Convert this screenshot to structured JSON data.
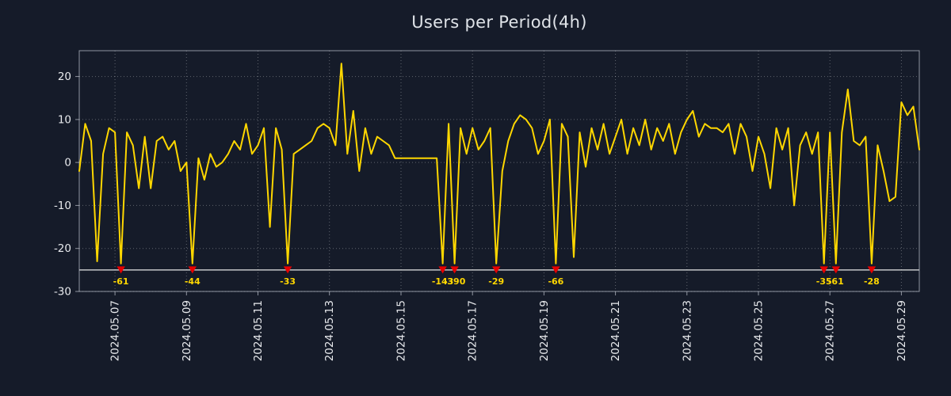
{
  "page": {
    "background": "#151b29"
  },
  "chart_data": {
    "type": "line",
    "title": "Users per Period(4h)",
    "x_start": "2024.05.06 00:00",
    "step_hours": 4,
    "x_axis": {
      "first_tick_index": 6,
      "tick_step_points": 12,
      "tick_labels": [
        "2024.05.07",
        "2024.05.09",
        "2024.05.11",
        "2024.05.13",
        "2024.05.15",
        "2024.05.17",
        "2024.05.19",
        "2024.05.21",
        "2024.05.23",
        "2024.05.25",
        "2024.05.27",
        "2024.05.29"
      ]
    },
    "y_axis": {
      "ticks": [
        -30,
        -20,
        -10,
        0,
        10,
        20
      ],
      "lim": [
        -30,
        26
      ]
    },
    "threshold": {
      "value": -25,
      "clip_display": -23.5
    },
    "values": [
      -2,
      9,
      5,
      -23,
      2,
      8,
      7,
      -61,
      7,
      4,
      -6,
      6,
      -6,
      5,
      6,
      3,
      5,
      -2,
      0,
      -44,
      1,
      -4,
      2,
      -1,
      0,
      2,
      5,
      3,
      9,
      2,
      4,
      8,
      -15,
      8,
      3,
      -33,
      2,
      3,
      4,
      5,
      8,
      9,
      8,
      4,
      23,
      2,
      12,
      -2,
      8,
      2,
      6,
      5,
      4,
      1,
      1,
      1,
      1,
      1,
      1,
      1,
      1,
      -143,
      9,
      -390,
      8,
      2,
      8,
      3,
      5,
      8,
      -29,
      -2,
      5,
      9,
      11,
      10,
      8,
      2,
      5,
      10,
      -66,
      9,
      6,
      -22,
      7,
      -1,
      8,
      3,
      9,
      2,
      6,
      10,
      2,
      8,
      4,
      10,
      3,
      8,
      5,
      9,
      2,
      7,
      10,
      12,
      6,
      9,
      8,
      8,
      7,
      9,
      2,
      9,
      6,
      -2,
      6,
      2,
      -6,
      8,
      3,
      8,
      -10,
      4,
      7,
      2,
      7,
      -35,
      7,
      -61,
      7,
      17,
      5,
      4,
      6,
      -28,
      4,
      -2,
      -9,
      -8,
      14,
      11,
      13,
      3
    ],
    "clipped_marker_labels": [
      "-61",
      "-44",
      "-33",
      "-143",
      "-390",
      "-29",
      "-66",
      "-35",
      "-61",
      "-28"
    ],
    "grid": true,
    "legend": null,
    "colors": {
      "line": "#ffd700",
      "marker": "#e60000",
      "marker_label": "#ffd700",
      "threshold_line": "#e8e8e8",
      "grid": "#ffffff",
      "spine": "#b9bfc9",
      "text": "#e8eaed",
      "title": "#dfe3e8"
    }
  }
}
